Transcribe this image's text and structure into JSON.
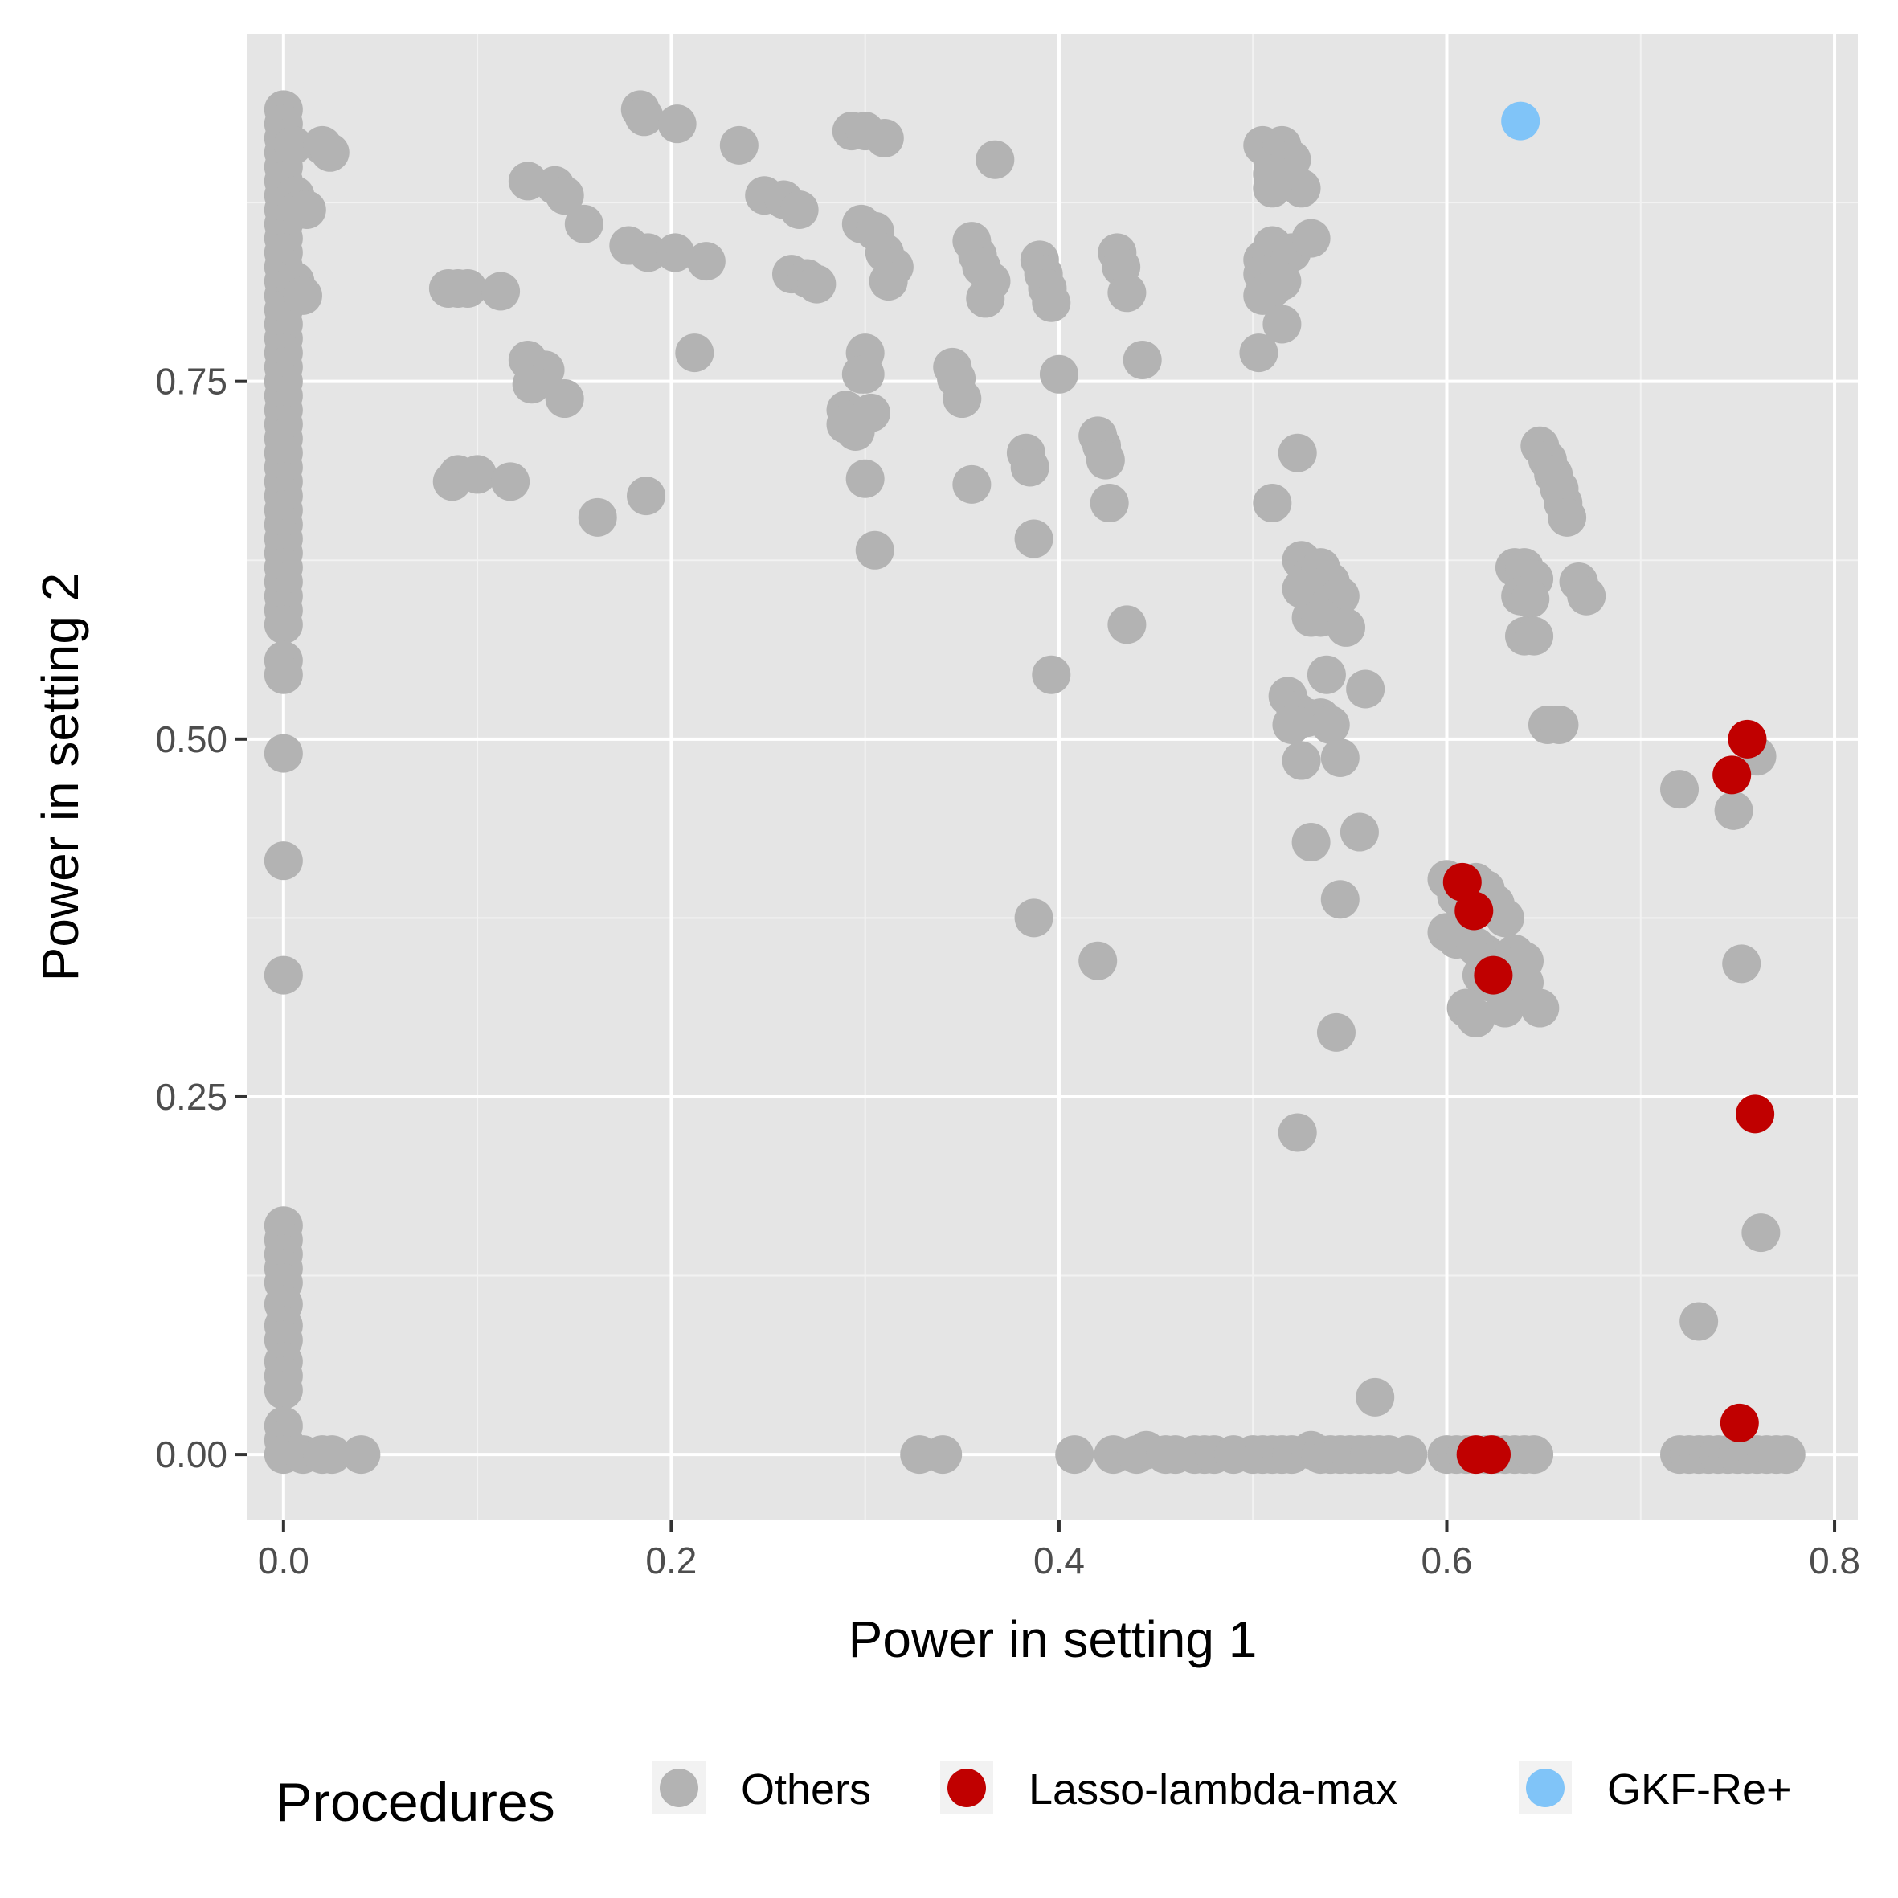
{
  "chart_data": {
    "type": "scatter",
    "title": "",
    "xlabel": "Power in setting 1",
    "ylabel": "Power in setting 2",
    "xlim": [
      -0.019,
      0.812
    ],
    "ylim": [
      -0.046,
      0.993
    ],
    "xticks": [
      0.0,
      0.2,
      0.4,
      0.6,
      0.8
    ],
    "xtick_labels": [
      "0.0",
      "0.2",
      "0.4",
      "0.6",
      "0.8"
    ],
    "yticks": [
      0.0,
      0.25,
      0.5,
      0.75
    ],
    "ytick_labels": [
      "0.00",
      "0.25",
      "0.50",
      "0.75"
    ],
    "grid": true,
    "legend": {
      "title": "Procedures",
      "position": "bottom",
      "entries": [
        "Others",
        "Lasso-lambda-max",
        "GKF-Re+"
      ]
    },
    "series": [
      {
        "name": "Others",
        "color": "#b3b3b3",
        "points": [
          [
            0.0,
            0.94
          ],
          [
            0.0,
            0.93
          ],
          [
            0.0,
            0.92
          ],
          [
            0.0,
            0.91
          ],
          [
            0.0,
            0.9
          ],
          [
            0.0,
            0.89
          ],
          [
            0.0,
            0.88
          ],
          [
            0.0,
            0.87
          ],
          [
            0.0,
            0.86
          ],
          [
            0.0,
            0.85
          ],
          [
            0.0,
            0.84
          ],
          [
            0.0,
            0.83
          ],
          [
            0.0,
            0.82
          ],
          [
            0.0,
            0.81
          ],
          [
            0.0,
            0.8
          ],
          [
            0.0,
            0.79
          ],
          [
            0.0,
            0.78
          ],
          [
            0.0,
            0.77
          ],
          [
            0.0,
            0.76
          ],
          [
            0.0,
            0.75
          ],
          [
            0.0,
            0.74
          ],
          [
            0.0,
            0.73
          ],
          [
            0.0,
            0.72
          ],
          [
            0.0,
            0.71
          ],
          [
            0.0,
            0.7
          ],
          [
            0.0,
            0.69
          ],
          [
            0.0,
            0.68
          ],
          [
            0.0,
            0.67
          ],
          [
            0.0,
            0.66
          ],
          [
            0.0,
            0.65
          ],
          [
            0.0,
            0.64
          ],
          [
            0.0,
            0.63
          ],
          [
            0.0,
            0.62
          ],
          [
            0.0,
            0.61
          ],
          [
            0.0,
            0.6
          ],
          [
            0.0,
            0.59
          ],
          [
            0.0,
            0.58
          ],
          [
            0.0,
            0.555
          ],
          [
            0.0,
            0.545
          ],
          [
            0.0,
            0.49
          ],
          [
            0.0,
            0.415
          ],
          [
            0.0,
            0.335
          ],
          [
            0.0,
            0.16
          ],
          [
            0.0,
            0.15
          ],
          [
            0.0,
            0.14
          ],
          [
            0.0,
            0.13
          ],
          [
            0.0,
            0.12
          ],
          [
            0.0,
            0.105
          ],
          [
            0.0,
            0.09
          ],
          [
            0.0,
            0.08
          ],
          [
            0.0,
            0.065
          ],
          [
            0.0,
            0.055
          ],
          [
            0.0,
            0.045
          ],
          [
            0.0,
            0.02
          ],
          [
            0.0,
            0.01
          ],
          [
            0.0,
            0.0
          ],
          [
            0.005,
            0.915
          ],
          [
            0.006,
            0.88
          ],
          [
            0.008,
            0.87
          ],
          [
            0.006,
            0.82
          ],
          [
            0.01,
            0.81
          ],
          [
            0.012,
            0.87
          ],
          [
            0.02,
            0.915
          ],
          [
            0.024,
            0.91
          ],
          [
            0.01,
            0.0
          ],
          [
            0.02,
            0.0
          ],
          [
            0.025,
            0.0
          ],
          [
            0.04,
            0.0
          ],
          [
            0.085,
            0.815
          ],
          [
            0.09,
            0.815
          ],
          [
            0.095,
            0.815
          ],
          [
            0.112,
            0.813
          ],
          [
            0.087,
            0.68
          ],
          [
            0.09,
            0.685
          ],
          [
            0.1,
            0.685
          ],
          [
            0.117,
            0.68
          ],
          [
            0.126,
            0.89
          ],
          [
            0.14,
            0.887
          ],
          [
            0.145,
            0.88
          ],
          [
            0.155,
            0.86
          ],
          [
            0.126,
            0.765
          ],
          [
            0.135,
            0.758
          ],
          [
            0.128,
            0.748
          ],
          [
            0.145,
            0.738
          ],
          [
            0.162,
            0.655
          ],
          [
            0.187,
            0.67
          ],
          [
            0.184,
            0.94
          ],
          [
            0.186,
            0.935
          ],
          [
            0.203,
            0.93
          ],
          [
            0.235,
            0.915
          ],
          [
            0.178,
            0.845
          ],
          [
            0.188,
            0.84
          ],
          [
            0.202,
            0.84
          ],
          [
            0.218,
            0.834
          ],
          [
            0.212,
            0.77
          ],
          [
            0.248,
            0.88
          ],
          [
            0.258,
            0.877
          ],
          [
            0.266,
            0.87
          ],
          [
            0.262,
            0.825
          ],
          [
            0.27,
            0.822
          ],
          [
            0.275,
            0.818
          ],
          [
            0.293,
            0.925
          ],
          [
            0.3,
            0.925
          ],
          [
            0.31,
            0.92
          ],
          [
            0.298,
            0.86
          ],
          [
            0.305,
            0.855
          ],
          [
            0.31,
            0.84
          ],
          [
            0.315,
            0.83
          ],
          [
            0.312,
            0.82
          ],
          [
            0.3,
            0.77
          ],
          [
            0.298,
            0.755
          ],
          [
            0.3,
            0.755
          ],
          [
            0.29,
            0.73
          ],
          [
            0.297,
            0.725
          ],
          [
            0.29,
            0.72
          ],
          [
            0.295,
            0.715
          ],
          [
            0.303,
            0.728
          ],
          [
            0.3,
            0.682
          ],
          [
            0.305,
            0.632
          ],
          [
            0.367,
            0.905
          ],
          [
            0.355,
            0.848
          ],
          [
            0.358,
            0.838
          ],
          [
            0.36,
            0.83
          ],
          [
            0.365,
            0.82
          ],
          [
            0.362,
            0.808
          ],
          [
            0.345,
            0.76
          ],
          [
            0.347,
            0.752
          ],
          [
            0.35,
            0.738
          ],
          [
            0.355,
            0.678
          ],
          [
            0.383,
            0.7
          ],
          [
            0.385,
            0.69
          ],
          [
            0.387,
            0.64
          ],
          [
            0.387,
            0.375
          ],
          [
            0.396,
            0.545
          ],
          [
            0.39,
            0.835
          ],
          [
            0.392,
            0.825
          ],
          [
            0.394,
            0.815
          ],
          [
            0.396,
            0.805
          ],
          [
            0.4,
            0.755
          ],
          [
            0.42,
            0.712
          ],
          [
            0.422,
            0.705
          ],
          [
            0.424,
            0.695
          ],
          [
            0.426,
            0.665
          ],
          [
            0.42,
            0.345
          ],
          [
            0.43,
            0.84
          ],
          [
            0.432,
            0.83
          ],
          [
            0.435,
            0.812
          ],
          [
            0.443,
            0.765
          ],
          [
            0.435,
            0.58
          ],
          [
            0.505,
            0.915
          ],
          [
            0.51,
            0.905
          ],
          [
            0.515,
            0.915
          ],
          [
            0.52,
            0.905
          ],
          [
            0.51,
            0.895
          ],
          [
            0.525,
            0.885
          ],
          [
            0.51,
            0.885
          ],
          [
            0.505,
            0.835
          ],
          [
            0.51,
            0.845
          ],
          [
            0.515,
            0.835
          ],
          [
            0.52,
            0.84
          ],
          [
            0.505,
            0.825
          ],
          [
            0.51,
            0.815
          ],
          [
            0.515,
            0.82
          ],
          [
            0.505,
            0.81
          ],
          [
            0.53,
            0.85
          ],
          [
            0.515,
            0.79
          ],
          [
            0.503,
            0.77
          ],
          [
            0.51,
            0.665
          ],
          [
            0.523,
            0.7
          ],
          [
            0.525,
            0.625
          ],
          [
            0.53,
            0.615
          ],
          [
            0.535,
            0.62
          ],
          [
            0.54,
            0.61
          ],
          [
            0.525,
            0.605
          ],
          [
            0.54,
            0.595
          ],
          [
            0.545,
            0.6
          ],
          [
            0.53,
            0.585
          ],
          [
            0.535,
            0.585
          ],
          [
            0.548,
            0.578
          ],
          [
            0.518,
            0.53
          ],
          [
            0.522,
            0.52
          ],
          [
            0.528,
            0.515
          ],
          [
            0.535,
            0.515
          ],
          [
            0.54,
            0.51
          ],
          [
            0.538,
            0.545
          ],
          [
            0.52,
            0.51
          ],
          [
            0.525,
            0.485
          ],
          [
            0.545,
            0.487
          ],
          [
            0.558,
            0.535
          ],
          [
            0.53,
            0.428
          ],
          [
            0.555,
            0.435
          ],
          [
            0.545,
            0.388
          ],
          [
            0.543,
            0.295
          ],
          [
            0.523,
            0.225
          ],
          [
            0.563,
            0.04
          ],
          [
            0.648,
            0.705
          ],
          [
            0.652,
            0.695
          ],
          [
            0.655,
            0.685
          ],
          [
            0.658,
            0.675
          ],
          [
            0.66,
            0.665
          ],
          [
            0.662,
            0.655
          ],
          [
            0.635,
            0.62
          ],
          [
            0.64,
            0.62
          ],
          [
            0.645,
            0.612
          ],
          [
            0.638,
            0.6
          ],
          [
            0.643,
            0.598
          ],
          [
            0.64,
            0.572
          ],
          [
            0.645,
            0.572
          ],
          [
            0.668,
            0.61
          ],
          [
            0.672,
            0.6
          ],
          [
            0.652,
            0.51
          ],
          [
            0.658,
            0.51
          ],
          [
            0.6,
            0.402
          ],
          [
            0.605,
            0.39
          ],
          [
            0.61,
            0.38
          ],
          [
            0.615,
            0.4
          ],
          [
            0.62,
            0.395
          ],
          [
            0.625,
            0.385
          ],
          [
            0.63,
            0.375
          ],
          [
            0.6,
            0.365
          ],
          [
            0.605,
            0.36
          ],
          [
            0.615,
            0.355
          ],
          [
            0.62,
            0.35
          ],
          [
            0.625,
            0.345
          ],
          [
            0.63,
            0.342
          ],
          [
            0.635,
            0.35
          ],
          [
            0.64,
            0.345
          ],
          [
            0.618,
            0.335
          ],
          [
            0.622,
            0.33
          ],
          [
            0.635,
            0.325
          ],
          [
            0.64,
            0.33
          ],
          [
            0.61,
            0.312
          ],
          [
            0.615,
            0.305
          ],
          [
            0.63,
            0.312
          ],
          [
            0.648,
            0.312
          ],
          [
            0.72,
            0.465
          ],
          [
            0.748,
            0.45
          ],
          [
            0.76,
            0.488
          ],
          [
            0.752,
            0.343
          ],
          [
            0.762,
            0.155
          ],
          [
            0.73,
            0.093
          ],
          [
            0.328,
            0.0
          ],
          [
            0.34,
            0.0
          ],
          [
            0.408,
            0.0
          ],
          [
            0.428,
            0.0
          ],
          [
            0.44,
            0.0
          ],
          [
            0.445,
            0.003
          ],
          [
            0.455,
            0.0
          ],
          [
            0.46,
            0.0
          ],
          [
            0.47,
            0.0
          ],
          [
            0.475,
            0.0
          ],
          [
            0.48,
            0.0
          ],
          [
            0.49,
            0.0
          ],
          [
            0.5,
            0.0
          ],
          [
            0.505,
            0.0
          ],
          [
            0.51,
            0.0
          ],
          [
            0.515,
            0.0
          ],
          [
            0.52,
            0.0
          ],
          [
            0.53,
            0.003
          ],
          [
            0.535,
            0.0
          ],
          [
            0.54,
            0.0
          ],
          [
            0.545,
            0.0
          ],
          [
            0.55,
            0.0
          ],
          [
            0.555,
            0.0
          ],
          [
            0.56,
            0.0
          ],
          [
            0.565,
            0.0
          ],
          [
            0.57,
            0.0
          ],
          [
            0.58,
            0.0
          ],
          [
            0.6,
            0.0
          ],
          [
            0.605,
            0.0
          ],
          [
            0.61,
            0.0
          ],
          [
            0.62,
            0.0
          ],
          [
            0.625,
            0.0
          ],
          [
            0.63,
            0.0
          ],
          [
            0.635,
            0.0
          ],
          [
            0.64,
            0.0
          ],
          [
            0.645,
            0.0
          ],
          [
            0.72,
            0.0
          ],
          [
            0.725,
            0.0
          ],
          [
            0.73,
            0.0
          ],
          [
            0.735,
            0.0
          ],
          [
            0.74,
            0.0
          ],
          [
            0.745,
            0.0
          ],
          [
            0.75,
            0.0
          ],
          [
            0.755,
            0.0
          ],
          [
            0.76,
            0.0
          ],
          [
            0.765,
            0.0
          ],
          [
            0.77,
            0.0
          ],
          [
            0.775,
            0.0
          ]
        ]
      },
      {
        "name": "Lasso-lambda-max",
        "color": "#c00000",
        "points": [
          [
            0.755,
            0.5
          ],
          [
            0.747,
            0.475
          ],
          [
            0.608,
            0.4
          ],
          [
            0.614,
            0.38
          ],
          [
            0.624,
            0.335
          ],
          [
            0.759,
            0.238
          ],
          [
            0.751,
            0.022
          ],
          [
            0.615,
            0.0
          ],
          [
            0.623,
            0.0
          ]
        ]
      },
      {
        "name": "GKF-Re+",
        "color": "#80c4f8",
        "points": [
          [
            0.638,
            0.932
          ]
        ]
      }
    ]
  }
}
